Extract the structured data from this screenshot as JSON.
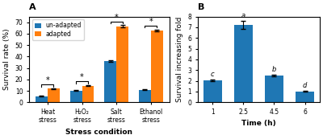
{
  "chart_data": [
    {
      "type": "bar",
      "title": "A",
      "x_label": "Stress condition",
      "y_label": "Survival rate (%)",
      "categories": [
        "Heat stress",
        "H₂O₂ stress",
        "Salt stress",
        "Ethanol stress"
      ],
      "series": [
        {
          "name": "un-adapted",
          "values": [
            5.2,
            10.2,
            36.2,
            11.0
          ],
          "errors": [
            0.3,
            0.35,
            0.7,
            0.4
          ]
        },
        {
          "name": "adapted",
          "values": [
            11.8,
            14.5,
            66.5,
            63.0
          ],
          "errors": [
            0.4,
            0.4,
            0.9,
            0.7
          ]
        }
      ],
      "ylim": [
        0,
        75
      ],
      "yticks": [
        0,
        10,
        20,
        30,
        40,
        50,
        60,
        70
      ],
      "legend": "upper left",
      "annotations": [
        {
          "text": "*",
          "category": "Heat stress"
        },
        {
          "text": "*",
          "category": "H₂O₂ stress"
        },
        {
          "text": "*",
          "category": "Salt stress"
        },
        {
          "text": "*",
          "category": "Ethanol stress"
        }
      ]
    },
    {
      "type": "bar",
      "title": "B",
      "x_label": "Time (h)",
      "y_label": "Survival increasing fold",
      "categories": [
        "1",
        "2.5",
        "4.5",
        "6"
      ],
      "values": [
        2.05,
        7.22,
        2.48,
        1.0
      ],
      "errors": [
        0.09,
        0.38,
        0.09,
        0.04
      ],
      "ylim": [
        0,
        8
      ],
      "yticks": [
        0,
        1,
        2,
        3,
        4,
        5,
        6,
        7,
        8
      ],
      "annotations": [
        {
          "text": "c",
          "category": "1"
        },
        {
          "text": "a",
          "category": "2.5"
        },
        {
          "text": "b",
          "category": "4.5"
        },
        {
          "text": "d",
          "category": "6"
        }
      ]
    }
  ]
}
